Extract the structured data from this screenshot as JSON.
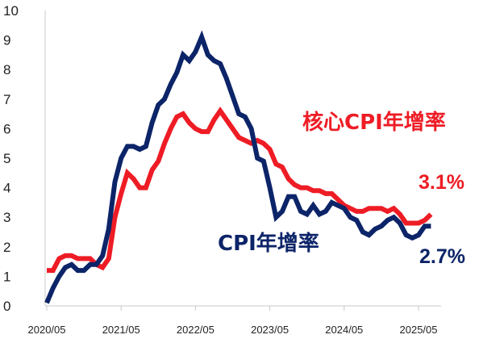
{
  "chart_data": {
    "type": "line",
    "x_ticks": [
      "2020/05",
      "2021/05",
      "2022/05",
      "2023/05",
      "2024/05",
      "2025/05"
    ],
    "ylim": [
      0,
      10
    ],
    "y_ticks": [
      "0",
      "1",
      "2",
      "3",
      "4",
      "5",
      "6",
      "7",
      "8",
      "9",
      "10"
    ],
    "grid": false,
    "series": [
      {
        "name": "核心CPI年增率",
        "color": "#ee1c25",
        "end_label": "3.1%",
        "values": [
          [
            "2020-05",
            1.2
          ],
          [
            "2020-06",
            1.2
          ],
          [
            "2020-07",
            1.6
          ],
          [
            "2020-08",
            1.7
          ],
          [
            "2020-09",
            1.7
          ],
          [
            "2020-10",
            1.6
          ],
          [
            "2020-11",
            1.6
          ],
          [
            "2020-12",
            1.6
          ],
          [
            "2021-01",
            1.4
          ],
          [
            "2021-02",
            1.3
          ],
          [
            "2021-03",
            1.6
          ],
          [
            "2021-04",
            3.0
          ],
          [
            "2021-05",
            3.8
          ],
          [
            "2021-06",
            4.5
          ],
          [
            "2021-07",
            4.3
          ],
          [
            "2021-08",
            4.0
          ],
          [
            "2021-09",
            4.0
          ],
          [
            "2021-10",
            4.6
          ],
          [
            "2021-11",
            4.9
          ],
          [
            "2021-12",
            5.5
          ],
          [
            "2022-01",
            6.0
          ],
          [
            "2022-02",
            6.4
          ],
          [
            "2022-03",
            6.5
          ],
          [
            "2022-04",
            6.2
          ],
          [
            "2022-05",
            6.0
          ],
          [
            "2022-06",
            5.9
          ],
          [
            "2022-07",
            5.9
          ],
          [
            "2022-08",
            6.3
          ],
          [
            "2022-09",
            6.6
          ],
          [
            "2022-10",
            6.3
          ],
          [
            "2022-11",
            6.0
          ],
          [
            "2022-12",
            5.7
          ],
          [
            "2023-01",
            5.6
          ],
          [
            "2023-02",
            5.5
          ],
          [
            "2023-03",
            5.6
          ],
          [
            "2023-04",
            5.5
          ],
          [
            "2023-05",
            5.3
          ],
          [
            "2023-06",
            4.8
          ],
          [
            "2023-07",
            4.7
          ],
          [
            "2023-08",
            4.3
          ],
          [
            "2023-09",
            4.1
          ],
          [
            "2023-10",
            4.0
          ],
          [
            "2023-11",
            4.0
          ],
          [
            "2023-12",
            3.9
          ],
          [
            "2024-01",
            3.9
          ],
          [
            "2024-02",
            3.8
          ],
          [
            "2024-03",
            3.8
          ],
          [
            "2024-04",
            3.6
          ],
          [
            "2024-05",
            3.4
          ],
          [
            "2024-06",
            3.3
          ],
          [
            "2024-07",
            3.2
          ],
          [
            "2024-08",
            3.2
          ],
          [
            "2024-09",
            3.3
          ],
          [
            "2024-10",
            3.3
          ],
          [
            "2024-11",
            3.3
          ],
          [
            "2024-12",
            3.2
          ],
          [
            "2025-01",
            3.3
          ],
          [
            "2025-02",
            3.1
          ],
          [
            "2025-03",
            2.8
          ],
          [
            "2025-04",
            2.8
          ],
          [
            "2025-05",
            2.8
          ],
          [
            "2025-06",
            2.9
          ],
          [
            "2025-07",
            3.1
          ]
        ]
      },
      {
        "name": "CPI年增率",
        "color": "#0c2468",
        "end_label": "2.7%",
        "values": [
          [
            "2020-05",
            0.1
          ],
          [
            "2020-06",
            0.6
          ],
          [
            "2020-07",
            1.0
          ],
          [
            "2020-08",
            1.3
          ],
          [
            "2020-09",
            1.4
          ],
          [
            "2020-10",
            1.2
          ],
          [
            "2020-11",
            1.2
          ],
          [
            "2020-12",
            1.4
          ],
          [
            "2021-01",
            1.4
          ],
          [
            "2021-02",
            1.7
          ],
          [
            "2021-03",
            2.6
          ],
          [
            "2021-04",
            4.2
          ],
          [
            "2021-05",
            5.0
          ],
          [
            "2021-06",
            5.4
          ],
          [
            "2021-07",
            5.4
          ],
          [
            "2021-08",
            5.3
          ],
          [
            "2021-09",
            5.4
          ],
          [
            "2021-10",
            6.2
          ],
          [
            "2021-11",
            6.8
          ],
          [
            "2021-12",
            7.0
          ],
          [
            "2022-01",
            7.5
          ],
          [
            "2022-02",
            7.9
          ],
          [
            "2022-03",
            8.5
          ],
          [
            "2022-04",
            8.3
          ],
          [
            "2022-05",
            8.6
          ],
          [
            "2022-06",
            9.1
          ],
          [
            "2022-07",
            8.5
          ],
          [
            "2022-08",
            8.3
          ],
          [
            "2022-09",
            8.2
          ],
          [
            "2022-10",
            7.7
          ],
          [
            "2022-11",
            7.1
          ],
          [
            "2022-12",
            6.5
          ],
          [
            "2023-01",
            6.4
          ],
          [
            "2023-02",
            6.0
          ],
          [
            "2023-03",
            5.0
          ],
          [
            "2023-04",
            4.9
          ],
          [
            "2023-05",
            4.0
          ],
          [
            "2023-06",
            3.0
          ],
          [
            "2023-07",
            3.2
          ],
          [
            "2023-08",
            3.7
          ],
          [
            "2023-09",
            3.7
          ],
          [
            "2023-10",
            3.2
          ],
          [
            "2023-11",
            3.1
          ],
          [
            "2023-12",
            3.4
          ],
          [
            "2024-01",
            3.1
          ],
          [
            "2024-02",
            3.2
          ],
          [
            "2024-03",
            3.5
          ],
          [
            "2024-04",
            3.4
          ],
          [
            "2024-05",
            3.3
          ],
          [
            "2024-06",
            3.0
          ],
          [
            "2024-07",
            2.9
          ],
          [
            "2024-08",
            2.5
          ],
          [
            "2024-09",
            2.4
          ],
          [
            "2024-10",
            2.6
          ],
          [
            "2024-11",
            2.7
          ],
          [
            "2024-12",
            2.9
          ],
          [
            "2025-01",
            3.0
          ],
          [
            "2025-02",
            2.8
          ],
          [
            "2025-03",
            2.4
          ],
          [
            "2025-04",
            2.3
          ],
          [
            "2025-05",
            2.4
          ],
          [
            "2025-06",
            2.7
          ],
          [
            "2025-07",
            2.7
          ]
        ]
      }
    ]
  }
}
